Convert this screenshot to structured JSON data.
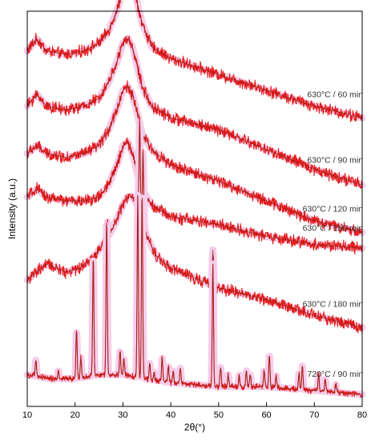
{
  "chart_data": {
    "type": "line",
    "xlabel": "2θ(°)",
    "ylabel": "Intensity (a.u.)",
    "xlim": [
      10,
      80
    ],
    "x_ticks": [
      10,
      20,
      30,
      40,
      50,
      60,
      70,
      80
    ],
    "y_ticks_shown": false,
    "grid": false,
    "legend": "none",
    "series": [
      {
        "name": "630°C / 60 min",
        "points": [
          [
            10,
            0.9
          ],
          [
            12,
            0.93
          ],
          [
            14,
            0.9
          ],
          [
            18,
            0.89
          ],
          [
            22,
            0.9
          ],
          [
            25,
            0.92
          ],
          [
            27,
            0.95
          ],
          [
            29,
            1.01
          ],
          [
            30,
            1.06
          ],
          [
            31,
            1.1
          ],
          [
            32,
            1.08
          ],
          [
            33,
            1.02
          ],
          [
            34,
            0.97
          ],
          [
            36,
            0.91
          ],
          [
            40,
            0.88
          ],
          [
            50,
            0.84
          ],
          [
            60,
            0.8
          ],
          [
            70,
            0.76
          ],
          [
            80,
            0.73
          ]
        ]
      },
      {
        "name": "630°C / 90 min",
        "points": [
          [
            10,
            0.76
          ],
          [
            12,
            0.79
          ],
          [
            14,
            0.76
          ],
          [
            18,
            0.75
          ],
          [
            22,
            0.76
          ],
          [
            25,
            0.78
          ],
          [
            27,
            0.82
          ],
          [
            29,
            0.88
          ],
          [
            30,
            0.92
          ],
          [
            31,
            0.93
          ],
          [
            32,
            0.91
          ],
          [
            33,
            0.86
          ],
          [
            34,
            0.81
          ],
          [
            36,
            0.76
          ],
          [
            40,
            0.73
          ],
          [
            50,
            0.7
          ],
          [
            60,
            0.65
          ],
          [
            70,
            0.6
          ],
          [
            80,
            0.56
          ]
        ]
      },
      {
        "name": "630°C / 120 min",
        "points": [
          [
            10,
            0.64
          ],
          [
            12,
            0.66
          ],
          [
            14,
            0.64
          ],
          [
            18,
            0.63
          ],
          [
            22,
            0.64
          ],
          [
            25,
            0.66
          ],
          [
            27,
            0.7
          ],
          [
            29,
            0.76
          ],
          [
            30,
            0.8
          ],
          [
            31,
            0.81
          ],
          [
            32,
            0.79
          ],
          [
            33,
            0.74
          ],
          [
            34,
            0.69
          ],
          [
            36,
            0.65
          ],
          [
            40,
            0.61
          ],
          [
            50,
            0.57
          ],
          [
            60,
            0.52
          ],
          [
            70,
            0.47
          ],
          [
            80,
            0.44
          ]
        ]
      },
      {
        "name": "630°C / 150 min",
        "points": [
          [
            10,
            0.53
          ],
          [
            12,
            0.55
          ],
          [
            14,
            0.53
          ],
          [
            18,
            0.52
          ],
          [
            22,
            0.52
          ],
          [
            25,
            0.53
          ],
          [
            27,
            0.56
          ],
          [
            29,
            0.62
          ],
          [
            30,
            0.66
          ],
          [
            31,
            0.67
          ],
          [
            32,
            0.64
          ],
          [
            33,
            0.59
          ],
          [
            34,
            0.55
          ],
          [
            36,
            0.51
          ],
          [
            40,
            0.48
          ],
          [
            50,
            0.46
          ],
          [
            60,
            0.43
          ],
          [
            70,
            0.41
          ],
          [
            80,
            0.4
          ]
        ]
      },
      {
        "name": "630°C / 180 min",
        "points": [
          [
            10,
            0.32
          ],
          [
            12,
            0.34
          ],
          [
            14,
            0.36
          ],
          [
            16,
            0.35
          ],
          [
            18,
            0.34
          ],
          [
            21,
            0.35
          ],
          [
            24,
            0.38
          ],
          [
            27,
            0.43
          ],
          [
            29,
            0.48
          ],
          [
            30,
            0.51
          ],
          [
            31,
            0.53
          ],
          [
            32,
            0.53
          ],
          [
            33,
            0.51
          ],
          [
            34,
            0.47
          ],
          [
            35,
            0.43
          ],
          [
            37,
            0.38
          ],
          [
            40,
            0.35
          ],
          [
            50,
            0.3
          ],
          [
            60,
            0.27
          ],
          [
            70,
            0.23
          ],
          [
            80,
            0.2
          ]
        ],
        "peaks": [
          [
            33.5,
            0.23
          ],
          [
            34.2,
            0.18
          ],
          [
            48.8,
            0.09
          ],
          [
            26.8,
            0.04
          ]
        ]
      },
      {
        "name": "720°C / 90 min",
        "points": [
          [
            10,
            0.08
          ],
          [
            15,
            0.07
          ],
          [
            20,
            0.07
          ],
          [
            25,
            0.08
          ],
          [
            30,
            0.08
          ],
          [
            35,
            0.07
          ],
          [
            40,
            0.06
          ],
          [
            50,
            0.05
          ],
          [
            60,
            0.05
          ],
          [
            70,
            0.04
          ],
          [
            80,
            0.03
          ]
        ],
        "peaks": [
          [
            11.8,
            0.04
          ],
          [
            16.5,
            0.02
          ],
          [
            20.3,
            0.12
          ],
          [
            21.2,
            0.05
          ],
          [
            23.8,
            0.3
          ],
          [
            26.6,
            0.39
          ],
          [
            29.4,
            0.06
          ],
          [
            30.2,
            0.04
          ],
          [
            33.1,
            0.46
          ],
          [
            34.0,
            0.47
          ],
          [
            35.6,
            0.04
          ],
          [
            36.5,
            0.02
          ],
          [
            38.2,
            0.06
          ],
          [
            39.5,
            0.04
          ],
          [
            40.5,
            0.03
          ],
          [
            42.0,
            0.04
          ],
          [
            48.8,
            0.31
          ],
          [
            50.4,
            0.05
          ],
          [
            52.0,
            0.03
          ],
          [
            54.3,
            0.03
          ],
          [
            55.8,
            0.04
          ],
          [
            56.6,
            0.03
          ],
          [
            59.5,
            0.04
          ],
          [
            60.6,
            0.08
          ],
          [
            62.0,
            0.03
          ],
          [
            66.8,
            0.04
          ],
          [
            67.5,
            0.06
          ],
          [
            70.9,
            0.04
          ],
          [
            72.3,
            0.03
          ],
          [
            74.5,
            0.02
          ]
        ]
      }
    ]
  }
}
